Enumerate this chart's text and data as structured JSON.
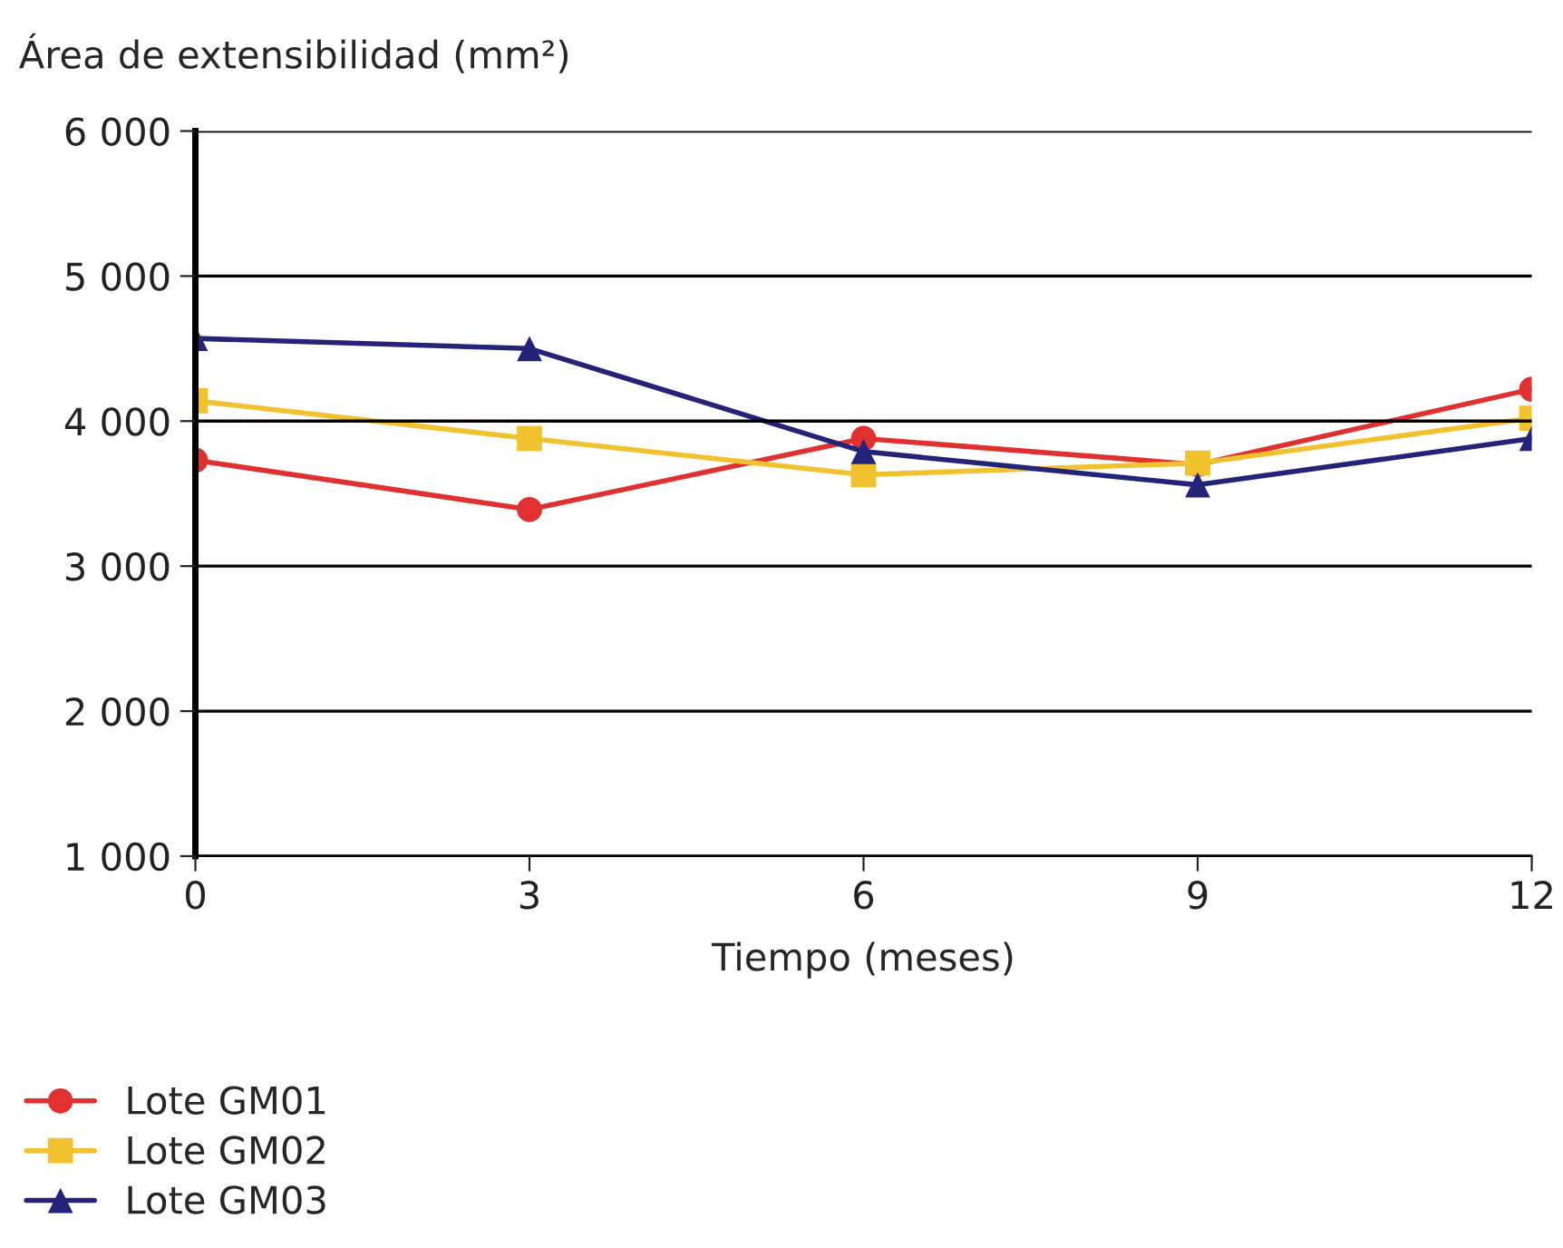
{
  "chart_data": {
    "type": "line",
    "ylabel": "Área de extensibilidad (mm²)",
    "xlabel": "Tiempo (meses)",
    "x": [
      0,
      3,
      6,
      9,
      12
    ],
    "series": [
      {
        "name": "Lote GM01",
        "color": "#e03030",
        "marker": "circle",
        "values": [
          3730,
          3390,
          3880,
          3700,
          4220
        ]
      },
      {
        "name": "Lote GM02",
        "color": "#f2c12e",
        "marker": "square",
        "values": [
          4140,
          3880,
          3630,
          3710,
          4020
        ]
      },
      {
        "name": "Lote GM03",
        "color": "#23237a",
        "marker": "triangle",
        "values": [
          4570,
          4500,
          3790,
          3560,
          3880
        ]
      }
    ],
    "xlim": [
      0,
      12
    ],
    "xticks": [
      0,
      3,
      6,
      9,
      12
    ],
    "ylim": [
      1000,
      6000
    ],
    "yticks": [
      {
        "value": 1000,
        "label": "1 000"
      },
      {
        "value": 2000,
        "label": "2 000"
      },
      {
        "value": 3000,
        "label": "3 000"
      },
      {
        "value": 4000,
        "label": "4 000"
      },
      {
        "value": 5000,
        "label": "5 000"
      },
      {
        "value": 6000,
        "label": "6 000"
      }
    ],
    "grid": "y",
    "legend": "bottom left",
    "line_style": "solid"
  }
}
